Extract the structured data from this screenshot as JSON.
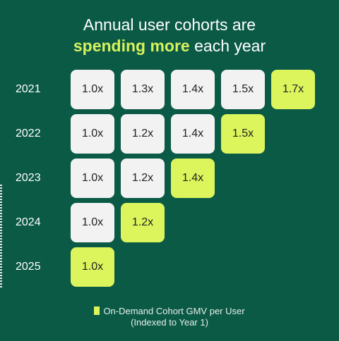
{
  "title": {
    "line1": "Annual user cohorts are",
    "highlight": "spending more",
    "line2_rest": " each year"
  },
  "colors": {
    "background": "#0b5a46",
    "cell": "#f2f2f2",
    "highlight_cell": "#dcf55c",
    "title_highlight": "#d7f25c"
  },
  "chart_data": {
    "type": "table",
    "rows": [
      "2021",
      "2022",
      "2023",
      "2024",
      "2025"
    ],
    "cells": [
      [
        "1.0x",
        "1.3x",
        "1.4x",
        "1.5x",
        "1.7x"
      ],
      [
        "1.0x",
        "1.2x",
        "1.4x",
        "1.5x"
      ],
      [
        "1.0x",
        "1.2x",
        "1.4x"
      ],
      [
        "1.0x",
        "1.2x"
      ],
      [
        "1.0x"
      ]
    ],
    "values": [
      [
        1.0,
        1.3,
        1.4,
        1.5,
        1.7
      ],
      [
        1.0,
        1.2,
        1.4,
        1.5
      ],
      [
        1.0,
        1.2,
        1.4
      ],
      [
        1.0,
        1.2
      ],
      [
        1.0
      ]
    ],
    "legend": {
      "line1": "On-Demand Cohort GMV per User",
      "line2": "(Indexed to Year 1)"
    }
  }
}
